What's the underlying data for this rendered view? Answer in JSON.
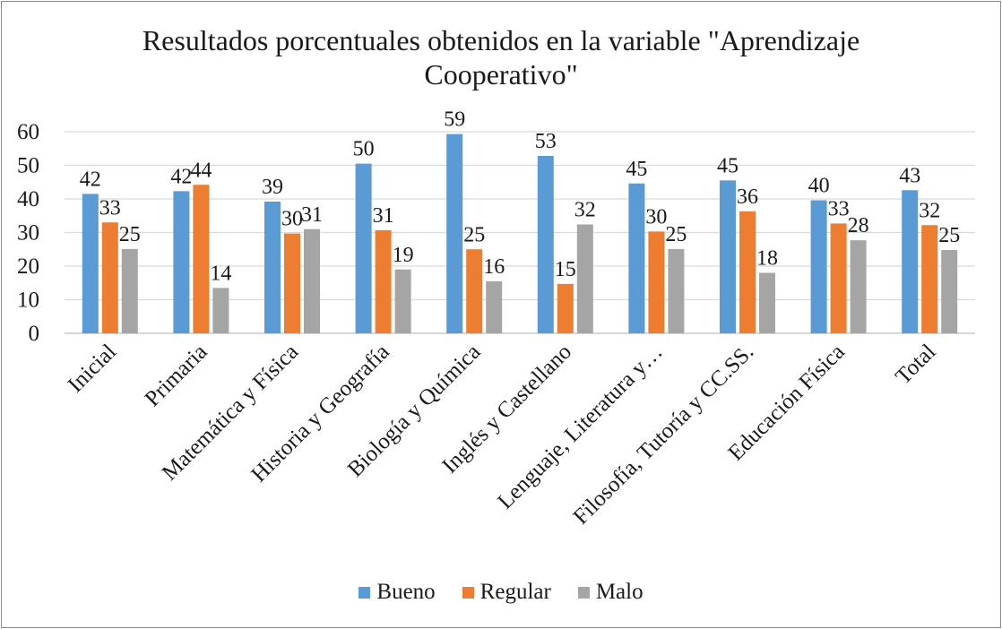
{
  "chart_data": {
    "type": "bar",
    "title_lines": [
      "Resultados porcentuales obtenidos en la variable \"Aprendizaje",
      "Cooperativo\""
    ],
    "categories": [
      "Inicial",
      "Primaria",
      "Matemática y Física",
      "Historia y Geografía",
      "Biología y Química",
      "Inglés y Castellano",
      "Lenguaje, Literatura y…",
      "Filosofía, Tutoría y CC.SS.",
      "Educación Física",
      "Total"
    ],
    "series": [
      {
        "name": "Bueno",
        "color": "#5b9bd5",
        "values": [
          41.5,
          42.3,
          39.2,
          50.5,
          59.3,
          52.8,
          44.6,
          45.5,
          39.6,
          42.6
        ],
        "labels": [
          "42",
          "42",
          "39",
          "50",
          "59",
          "53",
          "45",
          "45",
          "40",
          "43"
        ]
      },
      {
        "name": "Regular",
        "color": "#ed7d31",
        "values": [
          33.0,
          44.2,
          29.7,
          30.7,
          25.0,
          14.7,
          30.3,
          36.3,
          32.7,
          32.2
        ],
        "labels": [
          "33",
          "44",
          "30",
          "31",
          "25",
          "15",
          "30",
          "36",
          "33",
          "32"
        ]
      },
      {
        "name": "Malo",
        "color": "#a5a5a5",
        "values": [
          25.1,
          13.5,
          31.0,
          19.0,
          15.5,
          32.4,
          25.1,
          18.0,
          27.7,
          24.8
        ],
        "labels": [
          "25",
          "14",
          "31",
          "19",
          "16",
          "32",
          "25",
          "18",
          "28",
          "25"
        ]
      }
    ],
    "y_ticks": [
      "0",
      "10",
      "20",
      "30",
      "40",
      "50",
      "60"
    ],
    "ylim": [
      0,
      60
    ],
    "grid": true,
    "legend_position": "bottom"
  }
}
